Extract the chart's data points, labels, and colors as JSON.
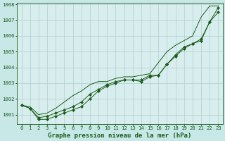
{
  "xlabel": "Graphe pression niveau de la mer (hPa)",
  "bg_color": "#c8e8e8",
  "plot_bg_color": "#d8eeee",
  "grid_color": "#b0cccc",
  "line_color": "#1a5c1a",
  "x": [
    0,
    1,
    2,
    3,
    4,
    5,
    6,
    7,
    8,
    9,
    10,
    11,
    12,
    13,
    14,
    15,
    16,
    17,
    18,
    19,
    20,
    21,
    22,
    23
  ],
  "line1": [
    1001.6,
    1001.4,
    1000.7,
    1000.7,
    1000.9,
    1001.1,
    1001.3,
    1001.5,
    1002.0,
    1002.5,
    1002.8,
    1003.0,
    1003.2,
    1003.2,
    1003.1,
    1003.4,
    1003.5,
    1004.2,
    1004.7,
    1005.2,
    1005.5,
    1005.7,
    1006.9,
    1007.5
  ],
  "line2": [
    1001.6,
    1001.4,
    1000.8,
    1000.9,
    1001.1,
    1001.3,
    1001.5,
    1001.8,
    1002.3,
    1002.6,
    1002.9,
    1003.1,
    1003.2,
    1003.2,
    1003.2,
    1003.5,
    1003.5,
    1004.2,
    1004.8,
    1005.3,
    1005.5,
    1005.8,
    1006.9,
    1007.8
  ],
  "line_smooth": [
    1001.6,
    1001.5,
    1001.0,
    1001.1,
    1001.4,
    1001.8,
    1002.2,
    1002.5,
    1002.9,
    1003.1,
    1003.1,
    1003.3,
    1003.4,
    1003.4,
    1003.5,
    1003.6,
    1004.3,
    1005.0,
    1005.4,
    1005.7,
    1006.0,
    1007.2,
    1007.9,
    1007.9
  ],
  "ylim": [
    1000.4,
    1008.1
  ],
  "yticks": [
    1001,
    1002,
    1003,
    1004,
    1005,
    1006,
    1007,
    1008
  ],
  "xticks": [
    0,
    1,
    2,
    3,
    4,
    5,
    6,
    7,
    8,
    9,
    10,
    11,
    12,
    13,
    14,
    15,
    16,
    17,
    18,
    19,
    20,
    21,
    22,
    23
  ],
  "tick_fontsize": 5.2,
  "xlabel_fontsize": 6.5,
  "markersize": 2.2
}
